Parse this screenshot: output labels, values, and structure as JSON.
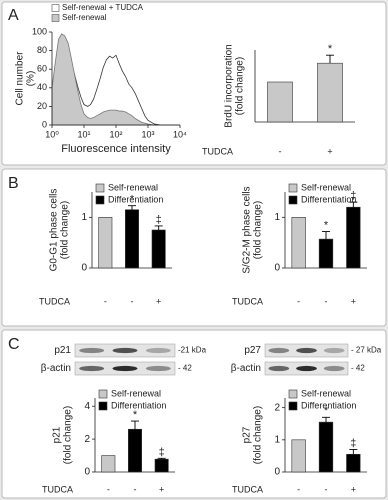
{
  "panel_labels": [
    "A",
    "B",
    "C"
  ],
  "chart_data": [
    {
      "type": "area",
      "xlabel": "Fluorescence intensity",
      "ylabel": [
        "Cell number",
        "(%)"
      ],
      "xscale": "log",
      "xlim": [
        1,
        10000
      ],
      "ylim": [
        0,
        100
      ],
      "xticks": [
        {
          "value": 1,
          "label": "10⁰"
        },
        {
          "value": 10,
          "label": "10¹"
        },
        {
          "value": 100,
          "label": "10²"
        },
        {
          "value": 1000,
          "label": "10³"
        },
        {
          "value": 10000,
          "label": "10⁴"
        }
      ],
      "yticks": [
        0,
        20,
        40,
        60,
        80,
        100
      ],
      "x": [
        1,
        1.3,
        1.6,
        2,
        2.5,
        3.2,
        4,
        5,
        6.3,
        8,
        10,
        13,
        16,
        20,
        25,
        32,
        40,
        50,
        63,
        79,
        100,
        126,
        158,
        200,
        251,
        316,
        398,
        501,
        631,
        794,
        1000,
        1585,
        2512,
        3981,
        6310,
        10000
      ],
      "series": [
        {
          "name": "Self-renewal + TUDCA",
          "color": "#ffffff",
          "values": [
            30,
            60,
            82,
            86,
            84,
            78,
            68,
            55,
            42,
            30,
            22,
            20,
            22,
            28,
            38,
            50,
            62,
            70,
            74,
            72,
            75,
            66,
            58,
            52,
            44,
            40,
            34,
            26,
            18,
            10,
            5,
            1,
            0,
            0,
            0,
            0
          ]
        },
        {
          "name": "Self-renewal",
          "color": "#c8c8c8",
          "values": [
            40,
            70,
            92,
            98,
            96,
            88,
            72,
            55,
            38,
            22,
            12,
            8,
            7,
            8,
            10,
            12,
            14,
            15,
            16,
            16,
            16,
            15,
            15,
            14,
            12,
            10,
            7,
            5,
            3,
            2,
            1,
            0,
            0,
            0,
            0,
            0
          ]
        }
      ]
    },
    {
      "type": "bar",
      "ylabel": [
        "BrdU incorporation",
        "(fold change)"
      ],
      "xlabel": "TUDCA",
      "categories": [
        "-",
        "+"
      ],
      "ylim": [
        0,
        1.8
      ],
      "yticks": [],
      "series": [
        {
          "color": "#c8c8c8",
          "values": [
            1,
            1.47
          ],
          "errors": [
            null,
            0.2
          ]
        }
      ],
      "value_annotations": [
        null,
        "*"
      ]
    },
    {
      "type": "bar",
      "ylabel": [
        "G0-G1 phase cells",
        "(fold change)"
      ],
      "xlabel": "TUDCA",
      "categories": [
        "-",
        "-",
        "+"
      ],
      "ylim": [
        0,
        1.5
      ],
      "yticks": [
        0,
        1
      ],
      "legend": "upper left",
      "series": [
        {
          "name": "Self-renewal",
          "color": "#c8c8c8",
          "values": [
            1,
            null,
            null
          ],
          "errors": [
            null,
            null,
            null
          ]
        },
        {
          "name": "Differentiation",
          "color": "#000000",
          "values": [
            null,
            1.15,
            0.75
          ],
          "errors": [
            null,
            0.08,
            0.08
          ]
        }
      ],
      "value_annotations": [
        null,
        "*",
        "‡"
      ]
    },
    {
      "type": "bar",
      "ylabel": [
        "S/G2-M phase cells",
        "(fold change)"
      ],
      "xlabel": "TUDCA",
      "categories": [
        "-",
        "-",
        "+"
      ],
      "ylim": [
        0,
        1.5
      ],
      "yticks": [
        0,
        1
      ],
      "legend": "upper left",
      "series": [
        {
          "name": "Self-renewal",
          "color": "#c8c8c8",
          "values": [
            1,
            null,
            null
          ],
          "errors": [
            null,
            null,
            null
          ]
        },
        {
          "name": "Differentiation",
          "color": "#000000",
          "values": [
            null,
            0.57,
            1.2
          ],
          "errors": [
            null,
            0.15,
            0.1
          ]
        }
      ],
      "value_annotations": [
        null,
        "*",
        "‡"
      ]
    },
    {
      "type": "bar",
      "ylabel": [
        "p21",
        "(fold change)"
      ],
      "xlabel": "TUDCA",
      "categories": [
        "-",
        "-",
        "+"
      ],
      "ylim": [
        0,
        4.5
      ],
      "yticks": [
        0,
        2,
        4
      ],
      "legend": "upper left",
      "blot": {
        "band_label": "p21",
        "size_label": "-21 kDa",
        "loading_label": "β-actin",
        "loading_size_label": "- 42"
      },
      "series": [
        {
          "name": "Self-renewal",
          "color": "#c8c8c8",
          "values": [
            1,
            null,
            null
          ],
          "errors": [
            null,
            null,
            null
          ]
        },
        {
          "name": "Differentiation",
          "color": "#000000",
          "values": [
            null,
            2.6,
            0.78
          ],
          "errors": [
            null,
            0.5,
            0.05
          ]
        }
      ],
      "value_annotations": [
        null,
        "*",
        "‡"
      ]
    },
    {
      "type": "bar",
      "ylabel": [
        "p27",
        "(fold change)"
      ],
      "xlabel": "TUDCA",
      "categories": [
        "-",
        "-",
        "+"
      ],
      "ylim": [
        0,
        2.3
      ],
      "yticks": [
        0,
        1,
        2
      ],
      "legend": "upper left",
      "blot": {
        "band_label": "p27",
        "size_label": "- 27 kDa",
        "loading_label": "β-actin",
        "loading_size_label": "- 42"
      },
      "series": [
        {
          "name": "Self-renewal",
          "color": "#c8c8c8",
          "values": [
            1,
            null,
            null
          ],
          "errors": [
            null,
            null,
            null
          ]
        },
        {
          "name": "Differentiation",
          "color": "#000000",
          "values": [
            null,
            1.55,
            0.55
          ],
          "errors": [
            null,
            0.15,
            0.15
          ]
        }
      ],
      "value_annotations": [
        null,
        "*",
        "‡"
      ]
    }
  ]
}
